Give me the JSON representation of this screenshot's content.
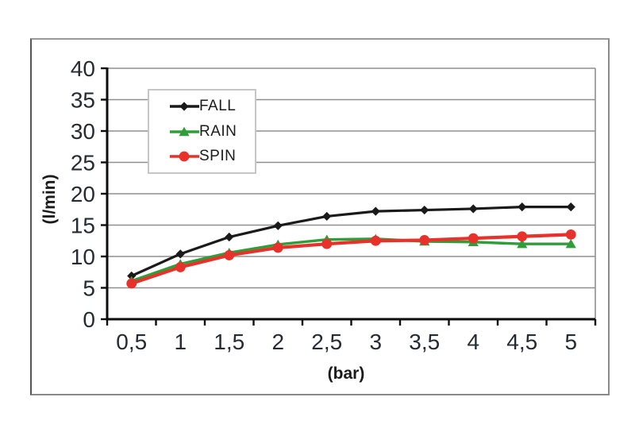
{
  "chart_data": {
    "type": "line",
    "title": "",
    "xlabel": "(bar)",
    "ylabel": "(l/min)",
    "categories_display": [
      "0,5",
      "1",
      "1,5",
      "2",
      "2,5",
      "3",
      "3,5",
      "4",
      "4,5",
      "5"
    ],
    "x": [
      0.5,
      1,
      1.5,
      2,
      2.5,
      3,
      3.5,
      4,
      4.5,
      5
    ],
    "ylim": [
      0,
      40
    ],
    "ytick_step": 5,
    "ytick_labels": [
      "0",
      "5",
      "10",
      "15",
      "20",
      "25",
      "30",
      "35",
      "40"
    ],
    "grid": true,
    "legend_position": "upper-left-inside",
    "series": [
      {
        "name": "FALL",
        "color": "#1a1a1a",
        "marker": "diamond",
        "values": [
          6.9,
          10.4,
          13.1,
          14.9,
          16.4,
          17.2,
          17.4,
          17.6,
          17.9,
          17.9
        ]
      },
      {
        "name": "RAIN",
        "color": "#2f9e38",
        "marker": "triangle-up",
        "values": [
          6.1,
          8.8,
          10.6,
          11.9,
          12.7,
          12.8,
          12.4,
          12.3,
          12.0,
          12.0
        ]
      },
      {
        "name": "SPIN",
        "color": "#e7312a",
        "marker": "circle",
        "values": [
          5.7,
          8.3,
          10.2,
          11.4,
          12.0,
          12.5,
          12.6,
          12.9,
          13.2,
          13.5
        ]
      }
    ]
  },
  "colors": {
    "background": "#ffffff",
    "grid": "#8f8f8f",
    "axis": "#0d0d0d",
    "tick_label": "#262b33",
    "frame_border": "#8a8a8a",
    "legend_border": "#c6c6c6"
  }
}
